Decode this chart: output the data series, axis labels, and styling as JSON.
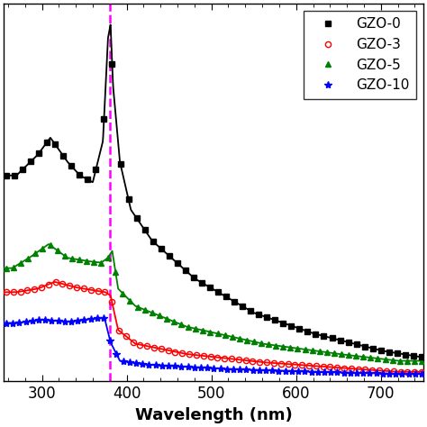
{
  "title": "",
  "xlabel": "Wavelength (nm)",
  "ylabel": "",
  "xlim": [
    255,
    750
  ],
  "dashed_line_x": 380,
  "dashed_line_color": "#FF00FF",
  "legend_labels": [
    "GZO-0",
    "GZO-3",
    "GZO-5",
    "GZO-10"
  ],
  "background_color": "#ffffff",
  "xticks": [
    300,
    400,
    500,
    600,
    700
  ],
  "ylim": [
    0,
    5.5
  ]
}
